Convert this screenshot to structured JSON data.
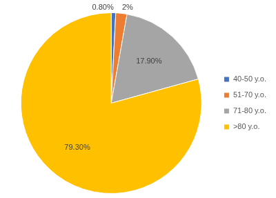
{
  "chart_data": {
    "type": "pie",
    "categories": [
      "40-50 y.o.",
      "51-70 y.o.",
      "71-80 y.o.",
      ">80 y.o."
    ],
    "values": [
      0.8,
      2,
      17.9,
      79.3
    ],
    "value_labels": [
      "0.80%",
      "2%",
      "17.90%",
      "79.30%"
    ],
    "colors": [
      "#4472c4",
      "#ed7d31",
      "#a5a5a5",
      "#ffc000"
    ],
    "legend": "right",
    "data_labels": true
  }
}
